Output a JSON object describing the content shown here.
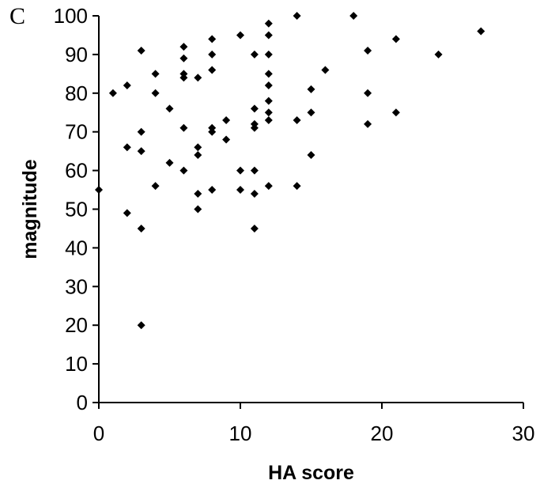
{
  "panel_label": "C",
  "chart_data": {
    "type": "scatter",
    "title": "",
    "xlabel": "HA score",
    "ylabel": "magnitude",
    "xlim": [
      0,
      30
    ],
    "ylim": [
      0,
      100
    ],
    "xticks": [
      0,
      10,
      20,
      30
    ],
    "yticks": [
      0,
      10,
      20,
      30,
      40,
      50,
      60,
      70,
      80,
      90,
      100
    ],
    "grid": false,
    "marker": "diamond",
    "marker_color": "#000000",
    "points": [
      [
        0,
        55
      ],
      [
        1,
        80
      ],
      [
        2,
        82
      ],
      [
        2,
        66
      ],
      [
        2,
        49
      ],
      [
        3,
        91
      ],
      [
        3,
        70
      ],
      [
        3,
        65
      ],
      [
        3,
        45
      ],
      [
        3,
        20
      ],
      [
        4,
        85
      ],
      [
        4,
        80
      ],
      [
        4,
        56
      ],
      [
        5,
        76
      ],
      [
        5,
        62
      ],
      [
        6,
        92
      ],
      [
        6,
        89
      ],
      [
        6,
        85
      ],
      [
        6,
        84
      ],
      [
        6,
        71
      ],
      [
        6,
        60
      ],
      [
        7,
        84
      ],
      [
        7,
        66
      ],
      [
        7,
        64
      ],
      [
        7,
        54
      ],
      [
        7,
        50
      ],
      [
        8,
        94
      ],
      [
        8,
        90
      ],
      [
        8,
        86
      ],
      [
        8,
        71
      ],
      [
        8,
        70
      ],
      [
        8,
        55
      ],
      [
        9,
        73
      ],
      [
        9,
        68
      ],
      [
        10,
        95
      ],
      [
        10,
        60
      ],
      [
        10,
        55
      ],
      [
        11,
        90
      ],
      [
        11,
        76
      ],
      [
        11,
        72
      ],
      [
        11,
        71
      ],
      [
        11,
        60
      ],
      [
        11,
        54
      ],
      [
        11,
        45
      ],
      [
        12,
        98
      ],
      [
        12,
        95
      ],
      [
        12,
        90
      ],
      [
        12,
        85
      ],
      [
        12,
        82
      ],
      [
        12,
        78
      ],
      [
        12,
        75
      ],
      [
        12,
        73
      ],
      [
        12,
        56
      ],
      [
        14,
        100
      ],
      [
        14,
        73
      ],
      [
        14,
        56
      ],
      [
        15,
        81
      ],
      [
        15,
        75
      ],
      [
        15,
        64
      ],
      [
        16,
        86
      ],
      [
        18,
        100
      ],
      [
        19,
        91
      ],
      [
        19,
        80
      ],
      [
        19,
        72
      ],
      [
        21,
        94
      ],
      [
        21,
        75
      ],
      [
        24,
        90
      ],
      [
        27,
        96
      ]
    ]
  }
}
